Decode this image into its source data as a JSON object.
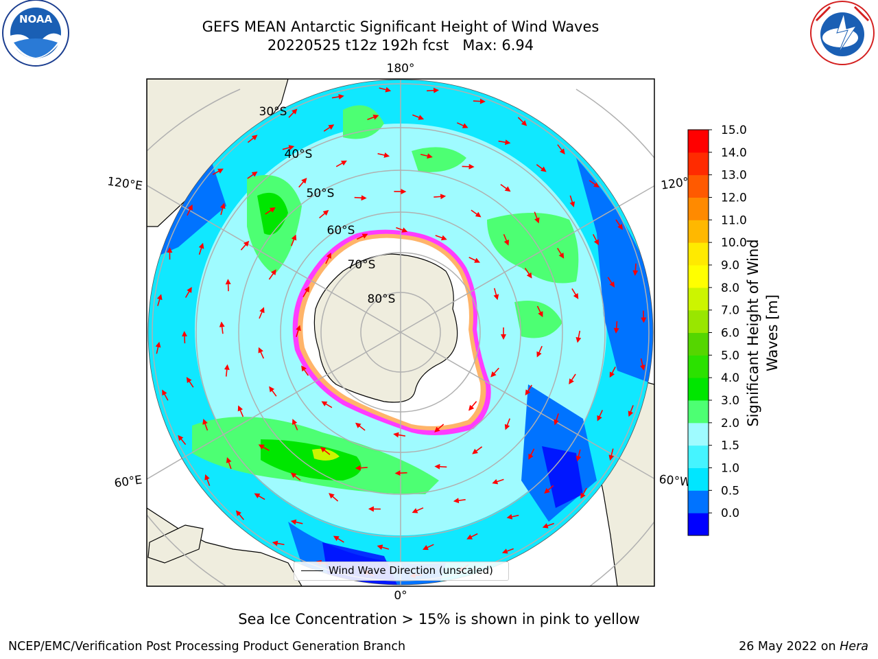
{
  "header": {
    "title_line1": "GEFS MEAN Antarctic Significant Height of Wind Waves",
    "title_line2": "20220525 t12z 192h fcst   Max: 6.94"
  },
  "logos": {
    "left": "NOAA",
    "left_ring_text": "NATIONAL OCEANIC AND ATMOSPHERIC ADMINISTRATION · U.S. DEPARTMENT OF COMMERCE",
    "right_ring_text": "NATIONAL WEATHER SERVICE"
  },
  "map": {
    "longitude_labels": [
      "180°",
      "120°E",
      "120°",
      "60°E",
      "60°W",
      "0°"
    ],
    "latitude_labels": [
      "30°S",
      "40°S",
      "50°S",
      "60°S",
      "70°S",
      "80°S"
    ],
    "legend_label": "Wind Wave Direction (unscaled)"
  },
  "colorbar": {
    "label": "Significant Height of Wind Waves [m]",
    "ticks": [
      "15.0",
      "14.0",
      "13.0",
      "12.0",
      "11.0",
      "10.0",
      "9.0",
      "8.0",
      "7.0",
      "6.0",
      "5.0",
      "4.0",
      "3.0",
      "2.0",
      "1.5",
      "1.0",
      "0.5",
      "0.0"
    ],
    "colors": [
      "#0000ff",
      "#0073ff",
      "#00e6ff",
      "#45f4ff",
      "#9ffbff",
      "#4dff73",
      "#00e600",
      "#2be100",
      "#55d600",
      "#99e600",
      "#ccf500",
      "#ffff00",
      "#ffea00",
      "#ffb800",
      "#ff8a00",
      "#ff5a00",
      "#ff2b00",
      "#ff0000"
    ],
    "land_color": "#efedde",
    "ice_colors": [
      "#ff3cff",
      "#ffb469",
      "#ffffff"
    ],
    "arrow_color": "#ff0000"
  },
  "footer": {
    "caption": "Sea Ice Concentration > 15% is shown in pink to yellow",
    "credit": "NCEP/EMC/Verification Post Processing Product Generation Branch",
    "date": "26 May 2022 on",
    "machine": "Hera"
  }
}
